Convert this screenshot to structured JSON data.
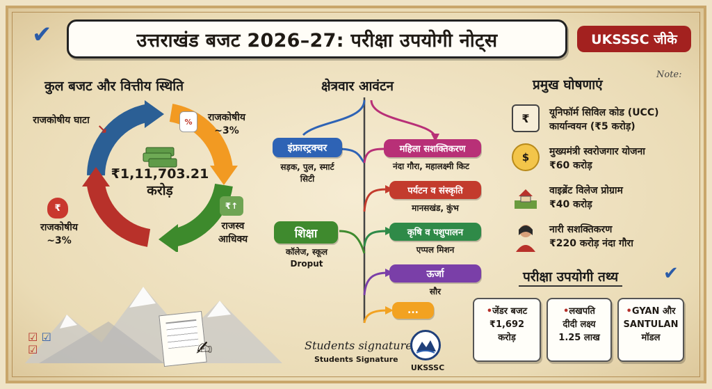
{
  "header": {
    "title": "उत्तराखंड बजट 2026–27: परीक्षा उपयोगी नोट्स",
    "badge": "UKSSSC जीके"
  },
  "left": {
    "heading": "कुल बजट और वित्तीय स्थिति",
    "total_amount": "₹1,11,703.21",
    "total_unit": "करोड़",
    "labels": {
      "fiscal_deficit": "राजकोषीय घाटा",
      "fiscal_top_right": "राजकोषीय ~3%",
      "revenue_surplus": "राजस्व आधिक्य",
      "fiscal_bottom_left": "राजकोषीय ~3%"
    },
    "colors": {
      "blue": "#2b5f95",
      "orange": "#f29a22",
      "green": "#3d8a2c",
      "red": "#b8312a"
    }
  },
  "center": {
    "heading": "क्षेत्रवार आवंटन",
    "left_items": [
      {
        "label": "इंफ्रास्ट्रक्चर",
        "sub": "सड़क, पुल, स्मार्ट सिटी",
        "color": "#2e63b5"
      },
      {
        "label": "शिक्षा",
        "sub": "कॉलेज, स्कूल Droput",
        "color": "#3f8a2e"
      }
    ],
    "right_items": [
      {
        "label": "महिला सशक्तिकरण",
        "sub": "नंदा गौरा, महालक्ष्मी किट",
        "color": "#b83077"
      },
      {
        "label": "पर्यटन व संस्कृति",
        "sub": "मानसखंड, कुंभ",
        "color": "#c33b2d"
      },
      {
        "label": "कृषि व पशुपालन",
        "sub": "एप्पल मिशन",
        "color": "#2f8a48"
      },
      {
        "label": "ऊर्जा",
        "sub": "सौर",
        "color": "#7a3fa8"
      },
      {
        "label": "...",
        "sub": "",
        "color": "#f2a221"
      }
    ]
  },
  "right": {
    "heading": "प्रमुख घोषणाएं",
    "note": "Note:",
    "announcements": [
      {
        "icon": "bank-icon",
        "line1": "यूनिफॉर्म सिविल कोड (UCC)",
        "line2": "कार्यान्वयन (₹5 करोड़)"
      },
      {
        "icon": "hand-coin-icon",
        "line1": "मुख्यमंत्री स्वरोजगार योजना",
        "line2": "₹60 करोड़"
      },
      {
        "icon": "village-icon",
        "line1": "वाइब्रेंट विलेज प्रोग्राम",
        "line2": "₹40 करोड़"
      },
      {
        "icon": "woman-icon",
        "line1": "नारी सशक्तिकरण",
        "line2": "₹220 करोड़ नंदा गौरा"
      }
    ],
    "facts_heading": "परीक्षा उपयोगी तथ्य",
    "facts": [
      {
        "line1": "जेंडर बजट",
        "line2": "₹1,692",
        "line3": "करोड़"
      },
      {
        "line1": "लखपति",
        "line2": "दीदी लक्ष्य",
        "line3": "1.25 लाख"
      },
      {
        "line1": "GYAN और",
        "line2": "SANTULAN",
        "line3": "मॉडल"
      }
    ]
  },
  "footer": {
    "signature_script": "Students signature",
    "signature_label": "Students Signature",
    "logo_text": "UKSSSC"
  }
}
